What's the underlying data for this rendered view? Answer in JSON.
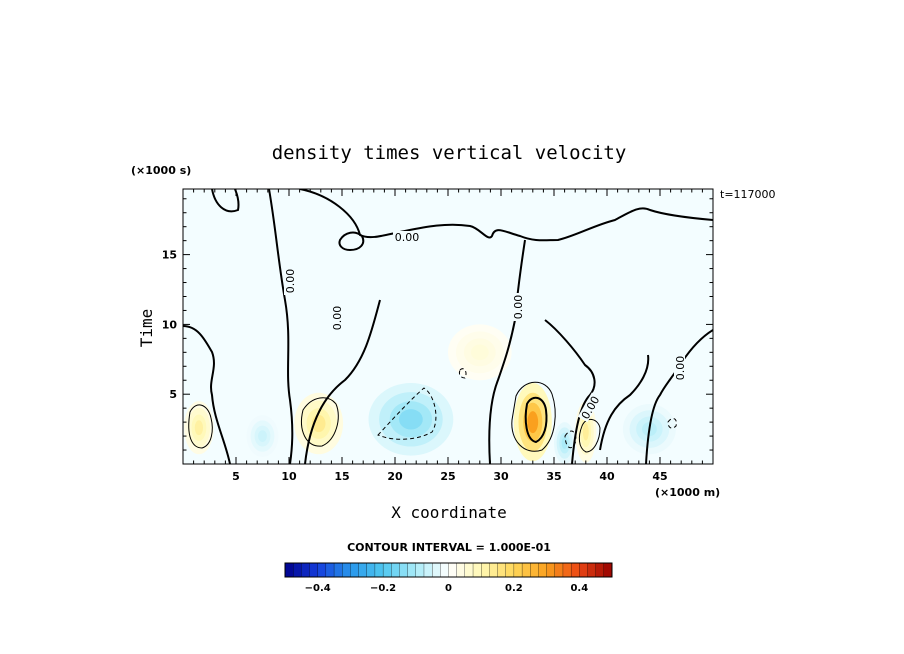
{
  "chart_data": {
    "type": "heatmap",
    "title": "density times vertical velocity",
    "xlabel": "X coordinate",
    "ylabel": "Time",
    "x_unit": "(×1000 m)",
    "y_unit": "(×1000 s)",
    "annotation": "t=117000",
    "contour_interval_text": "CONTOUR INTERVAL = 1.000E-01",
    "zero_contour_label": "0.00",
    "xlim": [
      0,
      50
    ],
    "ylim": [
      0,
      19.7
    ],
    "x_ticks": [
      5,
      10,
      15,
      20,
      25,
      30,
      35,
      40,
      45
    ],
    "y_ticks": [
      5,
      10,
      15
    ],
    "colorbar": {
      "range": [
        -0.5,
        0.5
      ],
      "ticks": [
        -0.4,
        -0.2,
        0,
        0.2,
        0.4
      ],
      "tick_labels": [
        "−0.4",
        "−0.2",
        "0",
        "0.2",
        "0.4"
      ]
    },
    "features": [
      {
        "x": 1.5,
        "y": 2.6,
        "value": 0.12,
        "sx": 1.4,
        "sy": 1.9
      },
      {
        "x": 12.8,
        "y": 2.9,
        "value": 0.14,
        "sx": 2.3,
        "sy": 2.2
      },
      {
        "x": 33.0,
        "y": 3.0,
        "value": 0.3,
        "sx": 1.8,
        "sy": 2.8
      },
      {
        "x": 38.0,
        "y": 2.3,
        "value": 0.13,
        "sx": 1.0,
        "sy": 2.2
      },
      {
        "x": 21.5,
        "y": 3.2,
        "value": -0.14,
        "sx": 4.0,
        "sy": 2.6
      },
      {
        "x": 36.0,
        "y": 1.5,
        "value": -0.1,
        "sx": 1.0,
        "sy": 1.5
      },
      {
        "x": 44.0,
        "y": 2.5,
        "value": -0.08,
        "sx": 2.5,
        "sy": 1.8
      },
      {
        "x": 7.5,
        "y": 2.0,
        "value": -0.06,
        "sx": 1.5,
        "sy": 1.5
      },
      {
        "x": 28.0,
        "y": 8.0,
        "value": 0.05,
        "sx": 3.0,
        "sy": 2.0
      }
    ]
  }
}
